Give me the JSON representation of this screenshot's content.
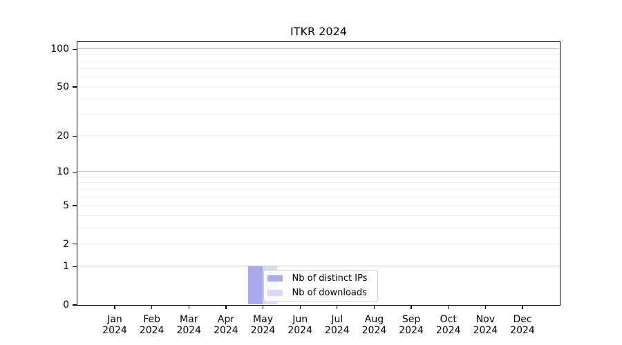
{
  "chart_data": {
    "type": "bar",
    "title": "ITKR 2024",
    "categories": [
      "Jan 2024",
      "Feb 2024",
      "Mar 2024",
      "Apr 2024",
      "May 2024",
      "Jun 2024",
      "Jul 2024",
      "Aug 2024",
      "Sep 2024",
      "Oct 2024",
      "Nov 2024",
      "Dec 2024"
    ],
    "series": [
      {
        "name": "Nb of distinct IPs",
        "color": "#a9a9ef",
        "values": [
          0,
          0,
          0,
          0,
          1,
          0,
          0,
          0,
          0,
          0,
          0,
          0
        ]
      },
      {
        "name": "Nb of downloads",
        "color": "#d9d9f6",
        "values": [
          0,
          0,
          0,
          0,
          1,
          0,
          0,
          0,
          0,
          0,
          0,
          0
        ]
      }
    ],
    "xlabel": "",
    "ylabel": "",
    "y_axis": {
      "scale": "log1p",
      "tick_values": [
        0,
        1,
        2,
        5,
        10,
        20,
        50,
        100
      ],
      "major_grid_values": [
        1,
        10,
        100
      ],
      "minor_grid_values": [
        2,
        3,
        4,
        5,
        6,
        7,
        8,
        9,
        20,
        30,
        40,
        50,
        60,
        70,
        80,
        90
      ],
      "ylim": [
        0,
        115
      ]
    },
    "grid": "horizontal-only",
    "legend_position": "inside-bottom-center",
    "colors": {
      "major_grid": "#c8c8c8",
      "minor_grid": "#eeeeee",
      "spine": "#000000",
      "background": "#ffffff"
    }
  }
}
